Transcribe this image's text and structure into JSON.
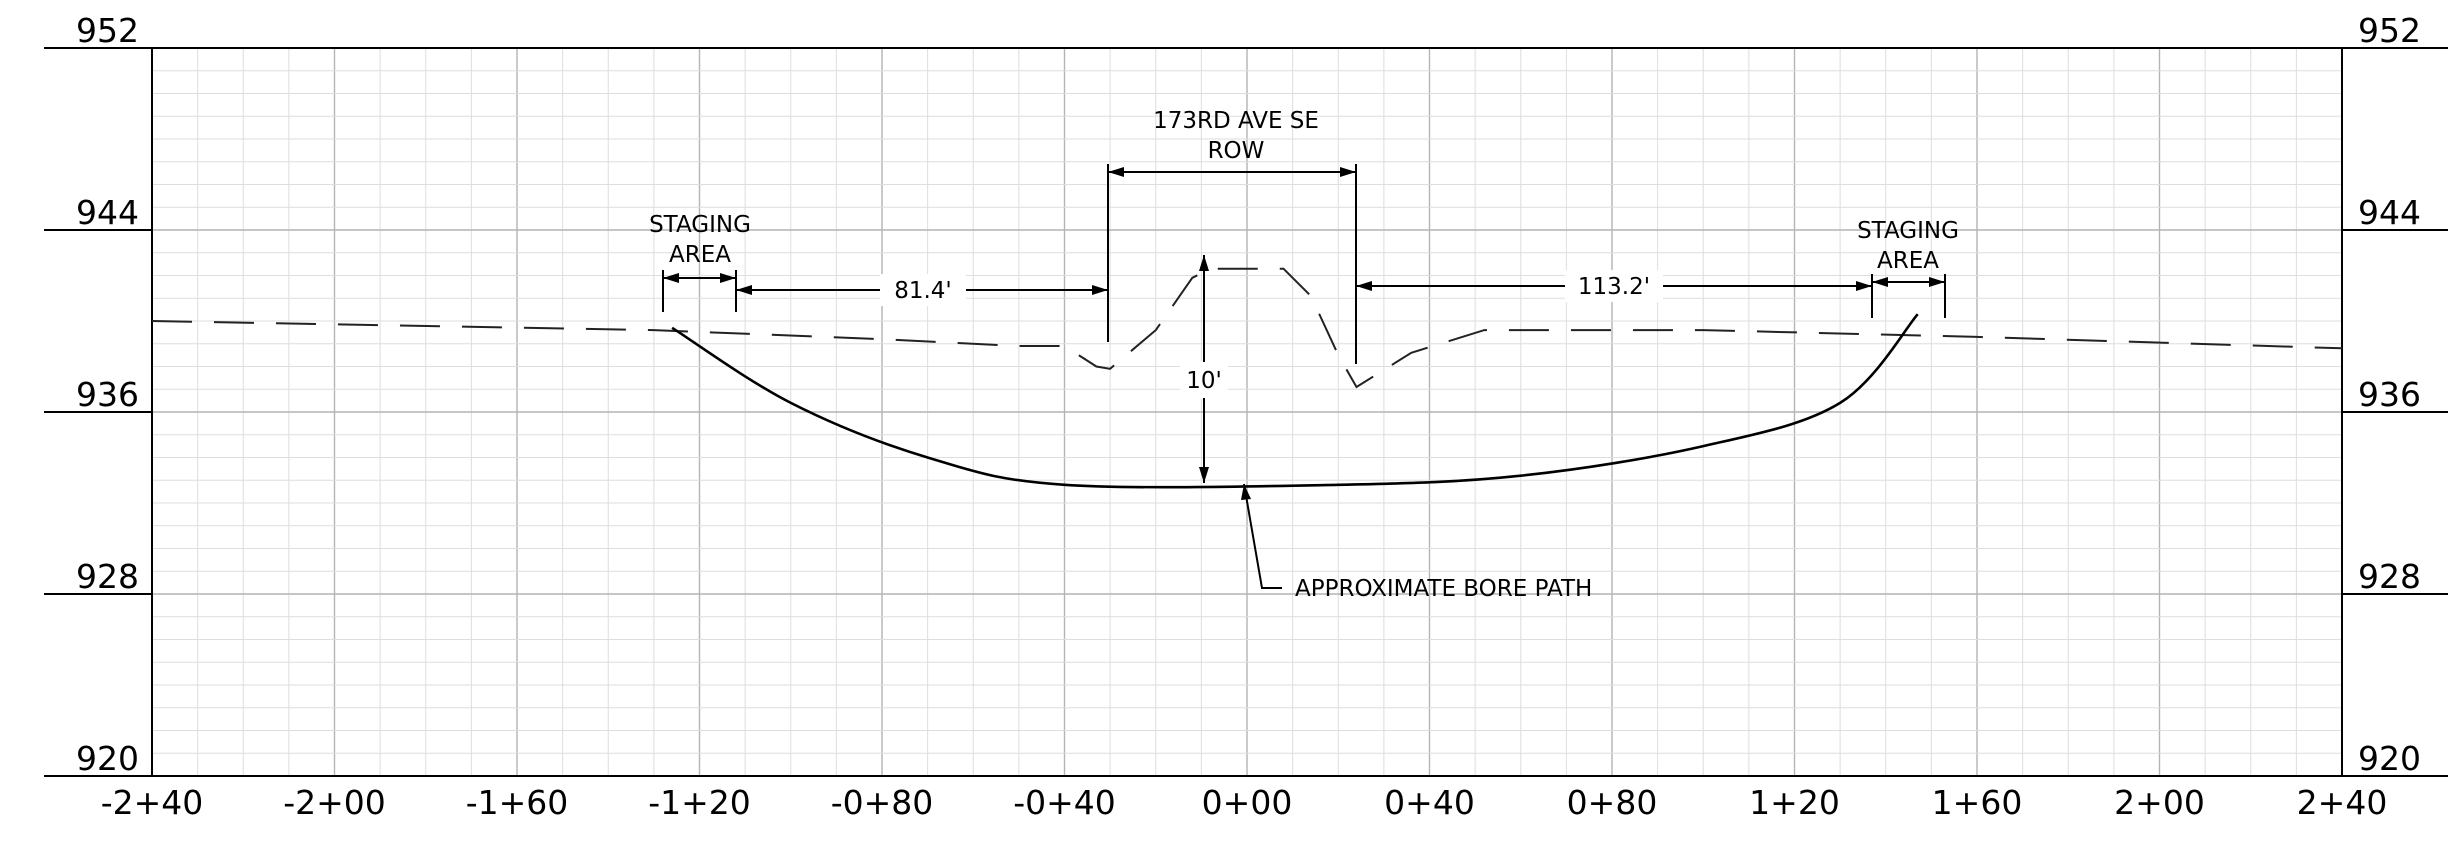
{
  "drawing": {
    "type": "bore-profile",
    "station_range": [
      "-2+40",
      "2+40"
    ],
    "elevation_range": [
      920,
      952
    ],
    "station_labels": [
      "-2+40",
      "-2+00",
      "-1+60",
      "-1+20",
      "-0+80",
      "-0+40",
      "0+00",
      "0+40",
      "0+80",
      "1+20",
      "1+60",
      "2+00",
      "2+40"
    ],
    "elevation_labels": [
      "952",
      "944",
      "936",
      "928",
      "920"
    ],
    "grid": true
  },
  "annotations": {
    "row_label_line1": "173RD AVE SE",
    "row_label_line2": "ROW",
    "staging_left_line1": "STAGING",
    "staging_left_line2": "AREA",
    "staging_right_line1": "STAGING",
    "staging_right_line2": "AREA",
    "bore_path_label": "APPROXIMATE BORE PATH"
  },
  "dimensions": {
    "left_offset": "81.4'",
    "right_offset": "113.2'",
    "cover_depth": "10'"
  },
  "ground_profile": [
    {
      "station": -240,
      "elevation": 940.0
    },
    {
      "station": -130,
      "elevation": 939.6
    },
    {
      "station": -80,
      "elevation": 939.2
    },
    {
      "station": -50,
      "elevation": 938.9
    },
    {
      "station": -40,
      "elevation": 938.9
    },
    {
      "station": -33,
      "elevation": 938.0
    },
    {
      "station": -30,
      "elevation": 937.9
    },
    {
      "station": -20,
      "elevation": 939.6
    },
    {
      "station": -12,
      "elevation": 941.9
    },
    {
      "station": -8,
      "elevation": 942.3
    },
    {
      "station": 0,
      "elevation": 942.3
    },
    {
      "station": 8,
      "elevation": 942.3
    },
    {
      "station": 14,
      "elevation": 941.1
    },
    {
      "station": 20,
      "elevation": 938.5
    },
    {
      "station": 24,
      "elevation": 937.1
    },
    {
      "station": 36,
      "elevation": 938.6
    },
    {
      "station": 52,
      "elevation": 939.6
    },
    {
      "station": 100,
      "elevation": 939.6
    },
    {
      "station": 160,
      "elevation": 939.3
    },
    {
      "station": 240,
      "elevation": 938.8
    }
  ],
  "bore_path": [
    {
      "station": -126,
      "elevation": 939.7
    },
    {
      "station": -100,
      "elevation": 936.4
    },
    {
      "station": -70,
      "elevation": 934.0
    },
    {
      "station": -40,
      "elevation": 932.8
    },
    {
      "station": 20,
      "elevation": 932.8
    },
    {
      "station": 60,
      "elevation": 933.2
    },
    {
      "station": 100,
      "elevation": 934.5
    },
    {
      "station": 130,
      "elevation": 936.4
    },
    {
      "station": 147,
      "elevation": 940.3
    }
  ]
}
